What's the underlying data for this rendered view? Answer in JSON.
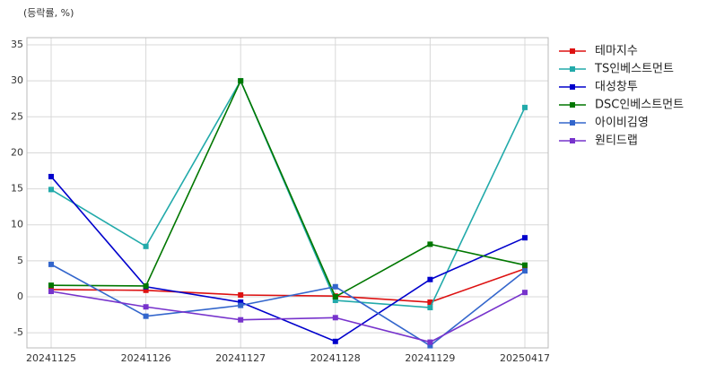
{
  "chart_data": {
    "type": "line",
    "y_label": "(등락률, %)",
    "categories": [
      "20241125",
      "20241126",
      "20241127",
      "20241128",
      "20241129",
      "20250417"
    ],
    "series": [
      {
        "name": "테마지수",
        "color": "#dd1111",
        "values": [
          1.0,
          0.9,
          0.25,
          0.1,
          -0.75,
          3.9
        ]
      },
      {
        "name": "TS인베스트먼트",
        "color": "#22aaaa",
        "values": [
          14.9,
          7.0,
          30.0,
          -0.5,
          -1.5,
          26.3
        ]
      },
      {
        "name": "대성창투",
        "color": "#0000cc",
        "values": [
          16.7,
          1.4,
          -0.75,
          -6.2,
          2.4,
          8.2
        ]
      },
      {
        "name": "DSC인베스트먼트",
        "color": "#007700",
        "values": [
          1.6,
          1.5,
          30.0,
          0.0,
          7.3,
          4.4
        ]
      },
      {
        "name": "아이비김영",
        "color": "#3366cc",
        "values": [
          4.5,
          -2.7,
          -1.2,
          1.4,
          -6.8,
          3.6
        ]
      },
      {
        "name": "원티드랩",
        "color": "#7733cc",
        "values": [
          0.75,
          -1.4,
          -3.2,
          -2.9,
          -6.3,
          0.6
        ]
      }
    ],
    "ylim": [
      -7.1,
      36
    ],
    "yticks": [
      -5,
      0,
      5,
      10,
      15,
      20,
      25,
      30,
      35
    ],
    "grid": true,
    "legend": "right"
  }
}
